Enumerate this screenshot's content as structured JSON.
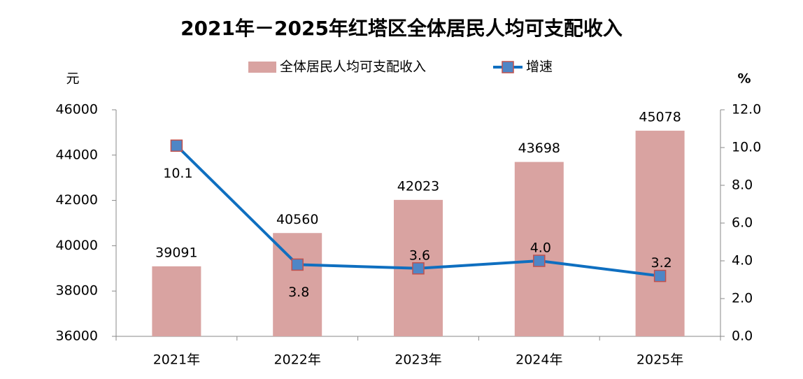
{
  "chart_data": {
    "type": "bar",
    "title": "2021年－2025年红塔区全体居民人均可支配收入",
    "ylabel": "元",
    "y2label": "%",
    "categories": [
      "2021年",
      "2022年",
      "2023年",
      "2024年",
      "2025年"
    ],
    "series": [
      {
        "name": "全体居民人均可支配收入",
        "type": "bar",
        "color": "#d9a3a1",
        "values": [
          39091,
          40560,
          42023,
          43698,
          45078
        ]
      },
      {
        "name": "增速",
        "type": "line",
        "axis": "y2",
        "color": "#0f6fc0",
        "marker_color": "#4f86c6",
        "marker_edge": "#c0504d",
        "values": [
          10.1,
          3.8,
          3.6,
          4.0,
          3.2
        ],
        "value_labels": [
          "10.1",
          "3.8",
          "3.6",
          "4.0",
          "3.2"
        ]
      }
    ],
    "ylim": [
      36000,
      46000
    ],
    "yticks": [
      36000,
      38000,
      40000,
      42000,
      44000,
      46000
    ],
    "y2lim": [
      0,
      12
    ],
    "y2ticks": [
      {
        "value": 0,
        "label": "0.0"
      },
      {
        "value": 2,
        "label": "2.0"
      },
      {
        "value": 4,
        "label": "4.0"
      },
      {
        "value": 6,
        "label": "6.0"
      },
      {
        "value": 8,
        "label": "8.0"
      },
      {
        "value": 10,
        "label": "10.0"
      },
      {
        "value": 12,
        "label": "12.0"
      }
    ],
    "legend": "top",
    "grid": false
  }
}
